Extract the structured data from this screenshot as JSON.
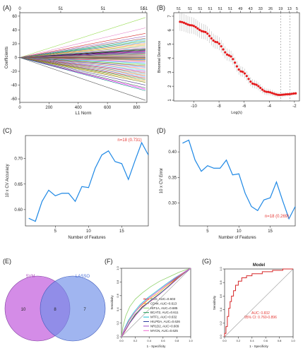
{
  "panels": [
    {
      "label": "(A)"
    },
    {
      "label": "(B)"
    },
    {
      "label": "(C)"
    },
    {
      "label": "(D)"
    },
    {
      "label": "(E)"
    },
    {
      "label": "(F)"
    },
    {
      "label": "(G)"
    }
  ],
  "chart_data": [
    {
      "panel": "A",
      "type": "line",
      "xlabel": "L1 Norm",
      "ylabel": "Coefficients",
      "xlim": [
        0,
        870
      ],
      "ylim": [
        -65,
        65
      ],
      "x_ticks": [
        0,
        200,
        400,
        600,
        800
      ],
      "y_ticks": [
        -60,
        -40,
        -20,
        0,
        20,
        40,
        60
      ],
      "top_ticks": [
        "0",
        "51",
        "51",
        "51",
        "51"
      ],
      "top_tick_x": [
        0,
        280,
        570,
        840,
        860
      ],
      "paths_end_values": [
        58,
        43,
        35,
        31,
        28,
        26,
        24,
        22,
        20,
        18,
        16,
        14,
        13,
        12,
        11,
        10,
        9,
        8,
        7,
        6,
        5,
        4,
        3,
        2,
        1,
        0,
        -1,
        -2,
        -3,
        -4,
        -6,
        -8,
        -10,
        -12,
        -14,
        -16,
        -18,
        -20,
        -22,
        -24,
        -26,
        -28,
        -30,
        -32,
        -34,
        -36,
        -40,
        -44,
        -46,
        -48,
        -62
      ],
      "path_colors": [
        "#99dd55",
        "#e377c2",
        "#d62728",
        "#9467bd",
        "#8c564b",
        "#17becf",
        "#2ca02c",
        "#1f77b4",
        "#ff7f0e",
        "#bcbd22",
        "#7f7f7f",
        "#ff69b4",
        "#00ced1",
        "#8b0000",
        "#006400",
        "#000080",
        "#ff1493",
        "#4b0082",
        "#20b2aa",
        "#dc143c",
        "#4682b4",
        "#9acd32",
        "#ba55d3",
        "#cd853f",
        "#708090",
        "#000000",
        "#ff4500",
        "#2e8b57",
        "#6a5acd",
        "#b8860b",
        "#c71585",
        "#1e90ff",
        "#32cd32",
        "#8b4513",
        "#4169e1",
        "#ff6347",
        "#48d1cc",
        "#9932cc",
        "#a52a2a",
        "#5f9ea0",
        "#d2691e",
        "#6495ed",
        "#b22222",
        "#228b22",
        "#daa520",
        "#808000",
        "#483d8b",
        "#2f4f4f",
        "#ff00ff",
        "#008080",
        "#555555"
      ]
    },
    {
      "panel": "B",
      "type": "scatter",
      "xlabel": "Log(λ)",
      "ylabel": "Binomial Deviance",
      "xlim": [
        -11.6,
        -1.6
      ],
      "ylim": [
        0.95,
        7.25
      ],
      "x_ticks": [
        -10,
        -8,
        -6,
        -4,
        -2
      ],
      "y_ticks": [
        1,
        2,
        3,
        4,
        5,
        6,
        7
      ],
      "top_ticks": [
        "51",
        "51",
        "51",
        "51",
        "51",
        "51",
        "49",
        "43",
        "33",
        "26",
        "19",
        "13",
        "5"
      ],
      "top_tick_logl": [
        -11.2,
        -10.3,
        -9.5,
        -8.7,
        -7.9,
        -7.1,
        -6.3,
        -5.5,
        -4.7,
        -3.9,
        -3.1,
        -2.4,
        -1.8
      ],
      "vlines": [
        -3.1,
        -2.35
      ],
      "start_x": -11.1,
      "end_x": -1.9,
      "deviance_profile": [
        [
          -11.1,
          6.6
        ],
        [
          -10.2,
          6.35
        ],
        [
          -9.2,
          5.9
        ],
        [
          -8.2,
          5.15
        ],
        [
          -7.2,
          4.2
        ],
        [
          -6.2,
          3.05
        ],
        [
          -5.2,
          2.15
        ],
        [
          -4.2,
          1.6
        ],
        [
          -3.2,
          1.38
        ],
        [
          -2.5,
          1.43
        ],
        [
          -1.9,
          1.49
        ]
      ],
      "ci_halfwidth": [
        0.65,
        0.1
      ]
    },
    {
      "panel": "C",
      "type": "line",
      "xlabel": "Number of Features",
      "ylabel": "10 x CV Accuracy",
      "xlim": [
        0.5,
        19
      ],
      "ylim": [
        0.568,
        0.745
      ],
      "x_ticks": [
        5,
        10,
        15
      ],
      "y_ticks": [
        0.6,
        0.65,
        0.7
      ],
      "y_tick_labels": [
        "0.60",
        "0.65",
        "0.70"
      ],
      "x": [
        1,
        2,
        3,
        4,
        5,
        6,
        7,
        8,
        9,
        10,
        11,
        12,
        13,
        14,
        15,
        16,
        17,
        18,
        19
      ],
      "values": [
        0.583,
        0.577,
        0.616,
        0.638,
        0.627,
        0.632,
        0.632,
        0.616,
        0.645,
        0.643,
        0.681,
        0.707,
        0.715,
        0.694,
        0.69,
        0.659,
        0.696,
        0.731,
        0.707
      ],
      "annotation": "n=18 (0.731)"
    },
    {
      "panel": "D",
      "type": "line",
      "xlabel": "Number of Features",
      "ylabel": "10 x CV Error",
      "xlim": [
        0.5,
        19
      ],
      "ylim": [
        0.255,
        0.432
      ],
      "x_ticks": [
        5,
        10,
        15
      ],
      "y_ticks": [
        0.3,
        0.35,
        0.4
      ],
      "y_tick_labels": [
        "0.30",
        "0.35",
        "0.40"
      ],
      "x": [
        1,
        2,
        3,
        4,
        5,
        6,
        7,
        8,
        9,
        10,
        11,
        12,
        13,
        14,
        15,
        16,
        17,
        18,
        19
      ],
      "values": [
        0.417,
        0.423,
        0.384,
        0.362,
        0.373,
        0.368,
        0.368,
        0.384,
        0.355,
        0.357,
        0.319,
        0.293,
        0.285,
        0.306,
        0.31,
        0.341,
        0.304,
        0.269,
        0.293
      ],
      "annotation": "n=18 (0.269)"
    },
    {
      "panel": "E",
      "type": "venn",
      "sets": [
        {
          "name": "SVM",
          "only": 10,
          "color": "#c86be0"
        },
        {
          "name": "LASSO",
          "only": 7,
          "color": "#6d8de8"
        }
      ],
      "intersection": 8
    },
    {
      "panel": "F",
      "type": "line",
      "xlabel": "1 - Specificity",
      "ylabel": "Sensitivity",
      "xlim": [
        0,
        1
      ],
      "ylim": [
        0,
        1
      ],
      "x_ticks": [
        0.0,
        0.2,
        0.4,
        0.6,
        0.8,
        1.0
      ],
      "y_ticks": [
        0.0,
        0.2,
        0.4,
        0.6,
        0.8,
        1.0
      ],
      "tick_labels": [
        "0.0",
        "0.2",
        "0.4",
        "0.6",
        "0.8",
        "1.0"
      ],
      "series": [
        {
          "name": "SCD, AUC=0.603",
          "color": "#e31a1c",
          "points": [
            [
              0,
              0
            ],
            [
              0.05,
              0.08
            ],
            [
              0.12,
              0.2
            ],
            [
              0.2,
              0.32
            ],
            [
              0.3,
              0.44
            ],
            [
              0.42,
              0.52
            ],
            [
              0.55,
              0.62
            ],
            [
              0.68,
              0.74
            ],
            [
              0.8,
              0.85
            ],
            [
              0.9,
              0.93
            ],
            [
              1,
              1
            ]
          ]
        },
        {
          "name": "CD44, AUC=0.613",
          "color": "#ff9f1c",
          "points": [
            [
              0,
              0
            ],
            [
              0.04,
              0.1
            ],
            [
              0.1,
              0.22
            ],
            [
              0.18,
              0.34
            ],
            [
              0.28,
              0.45
            ],
            [
              0.4,
              0.55
            ],
            [
              0.52,
              0.63
            ],
            [
              0.65,
              0.74
            ],
            [
              0.78,
              0.84
            ],
            [
              0.9,
              0.93
            ],
            [
              1,
              1
            ]
          ]
        },
        {
          "name": "HIF1A, AUC=0.685",
          "color": "#8fd16a",
          "points": [
            [
              0,
              0
            ],
            [
              0.02,
              0.14
            ],
            [
              0.06,
              0.3
            ],
            [
              0.12,
              0.44
            ],
            [
              0.2,
              0.55
            ],
            [
              0.3,
              0.64
            ],
            [
              0.42,
              0.73
            ],
            [
              0.55,
              0.81
            ],
            [
              0.7,
              0.88
            ],
            [
              0.85,
              0.95
            ],
            [
              1,
              1
            ]
          ]
        },
        {
          "name": "BCAT2, AUC=0.611",
          "color": "#1a9850",
          "points": [
            [
              0,
              0
            ],
            [
              0.05,
              0.09
            ],
            [
              0.12,
              0.21
            ],
            [
              0.2,
              0.33
            ],
            [
              0.3,
              0.43
            ],
            [
              0.42,
              0.53
            ],
            [
              0.55,
              0.63
            ],
            [
              0.67,
              0.73
            ],
            [
              0.8,
              0.84
            ],
            [
              0.91,
              0.93
            ],
            [
              1,
              1
            ]
          ]
        },
        {
          "name": "MTF1, AUC=0.632",
          "color": "#17becf",
          "points": [
            [
              0,
              0
            ],
            [
              0.04,
              0.11
            ],
            [
              0.1,
              0.24
            ],
            [
              0.18,
              0.36
            ],
            [
              0.27,
              0.47
            ],
            [
              0.38,
              0.57
            ],
            [
              0.5,
              0.66
            ],
            [
              0.63,
              0.76
            ],
            [
              0.77,
              0.86
            ],
            [
              0.9,
              0.94
            ],
            [
              1,
              1
            ]
          ]
        },
        {
          "name": "HILPDA, AUC=0.626",
          "color": "#2c3e9e",
          "points": [
            [
              0,
              0
            ],
            [
              0.04,
              0.1
            ],
            [
              0.11,
              0.23
            ],
            [
              0.19,
              0.35
            ],
            [
              0.28,
              0.46
            ],
            [
              0.39,
              0.56
            ],
            [
              0.51,
              0.65
            ],
            [
              0.64,
              0.75
            ],
            [
              0.78,
              0.85
            ],
            [
              0.9,
              0.94
            ],
            [
              1,
              1
            ]
          ]
        },
        {
          "name": "NR1D2, AUC=0.609",
          "color": "#9e4fc9",
          "points": [
            [
              0,
              0
            ],
            [
              0.05,
              0.09
            ],
            [
              0.12,
              0.2
            ],
            [
              0.21,
              0.32
            ],
            [
              0.31,
              0.43
            ],
            [
              0.43,
              0.53
            ],
            [
              0.55,
              0.62
            ],
            [
              0.68,
              0.73
            ],
            [
              0.8,
              0.84
            ],
            [
              0.91,
              0.93
            ],
            [
              1,
              1
            ]
          ]
        },
        {
          "name": "MYCN, AUC=0.625",
          "color": "#f06ad1",
          "points": [
            [
              0,
              0
            ],
            [
              0.04,
              0.1
            ],
            [
              0.11,
              0.23
            ],
            [
              0.19,
              0.35
            ],
            [
              0.28,
              0.46
            ],
            [
              0.39,
              0.56
            ],
            [
              0.51,
              0.65
            ],
            [
              0.64,
              0.75
            ],
            [
              0.78,
              0.86
            ],
            [
              0.9,
              0.94
            ],
            [
              1,
              1
            ]
          ]
        }
      ]
    },
    {
      "panel": "G",
      "type": "line",
      "title": "Model",
      "xlabel": "1 - Specificity",
      "ylabel": "Sensitivity",
      "xlim": [
        0,
        1
      ],
      "ylim": [
        0,
        1
      ],
      "x_ticks": [
        0.0,
        0.2,
        0.4,
        0.6,
        0.8,
        1.0
      ],
      "y_ticks": [
        0.0,
        0.2,
        0.4,
        0.6,
        0.8,
        1.0
      ],
      "tick_labels": [
        "0.0",
        "0.2",
        "0.4",
        "0.6",
        "0.8",
        "1.0"
      ],
      "annotation_auc": "AUC: 0.832",
      "annotation_ci": "95% CI: 0.760-0.896",
      "color": "#d62728",
      "points": [
        [
          0,
          0
        ],
        [
          0,
          0.05
        ],
        [
          0.02,
          0.05
        ],
        [
          0.02,
          0.15
        ],
        [
          0.04,
          0.15
        ],
        [
          0.04,
          0.3
        ],
        [
          0.06,
          0.3
        ],
        [
          0.06,
          0.42
        ],
        [
          0.08,
          0.42
        ],
        [
          0.08,
          0.52
        ],
        [
          0.1,
          0.52
        ],
        [
          0.1,
          0.6
        ],
        [
          0.13,
          0.6
        ],
        [
          0.13,
          0.68
        ],
        [
          0.16,
          0.68
        ],
        [
          0.16,
          0.76
        ],
        [
          0.2,
          0.76
        ],
        [
          0.2,
          0.82
        ],
        [
          0.25,
          0.82
        ],
        [
          0.25,
          0.87
        ],
        [
          0.32,
          0.87
        ],
        [
          0.32,
          0.9
        ],
        [
          0.4,
          0.9
        ],
        [
          0.4,
          0.93
        ],
        [
          0.55,
          0.93
        ],
        [
          0.55,
          0.96
        ],
        [
          0.7,
          0.96
        ],
        [
          0.7,
          0.98
        ],
        [
          0.85,
          0.98
        ],
        [
          0.85,
          1
        ],
        [
          1,
          1
        ]
      ]
    }
  ]
}
